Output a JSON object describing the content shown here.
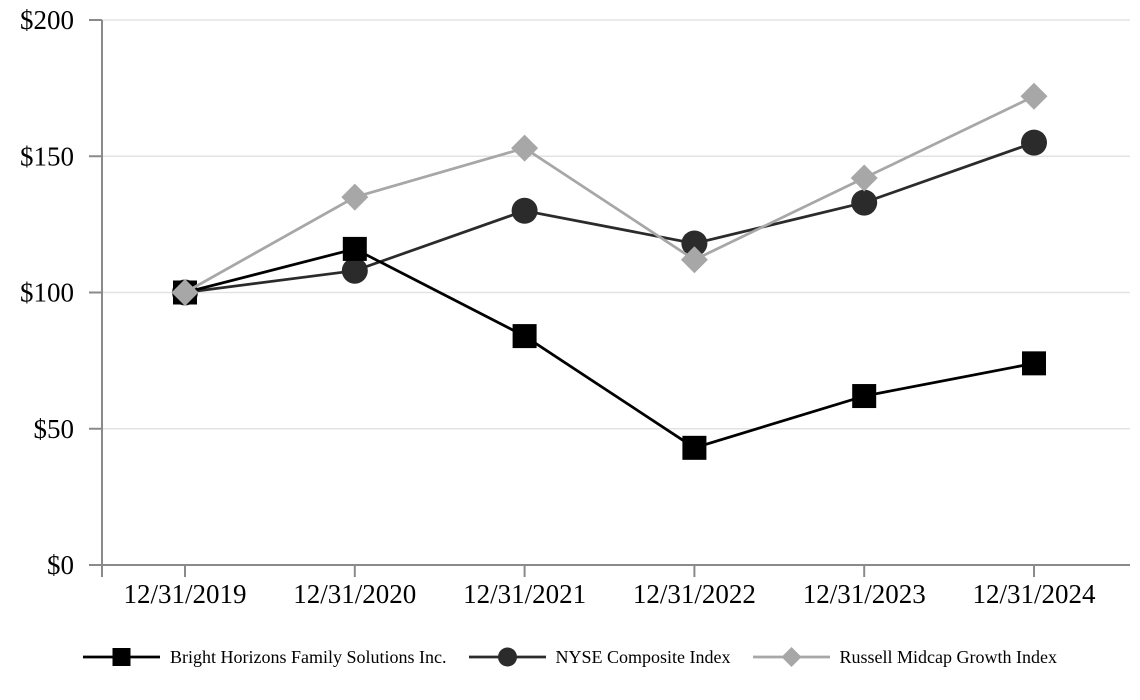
{
  "chart_data": {
    "type": "line",
    "title": "",
    "xlabel": "",
    "ylabel": "",
    "categories": [
      "12/31/2019",
      "12/31/2020",
      "12/31/2021",
      "12/31/2022",
      "12/31/2023",
      "12/31/2024"
    ],
    "series": [
      {
        "name": "Bright Horizons Family Solutions Inc.",
        "marker": "square",
        "color": "#000000",
        "values": [
          100,
          116,
          84,
          43,
          62,
          74
        ]
      },
      {
        "name": "NYSE Composite Index",
        "marker": "circle",
        "color": "#2b2b2b",
        "values": [
          100,
          108,
          130,
          118,
          133,
          155
        ]
      },
      {
        "name": "Russell Midcap Growth Index",
        "marker": "diamond",
        "color": "#a7a7a7",
        "values": [
          100,
          135,
          153,
          112,
          142,
          172
        ]
      }
    ],
    "y_axis": {
      "ylim": [
        0,
        200
      ],
      "ticks": [
        0,
        50,
        100,
        150,
        200
      ],
      "tick_labels": [
        "$0",
        "$50",
        "$100",
        "$150",
        "$200"
      ]
    },
    "grid": "horizontal",
    "legend_position": "bottom",
    "colors": {
      "grid": "#e3e3e3",
      "axis": "#8a8a8a",
      "text": "#000000"
    }
  }
}
